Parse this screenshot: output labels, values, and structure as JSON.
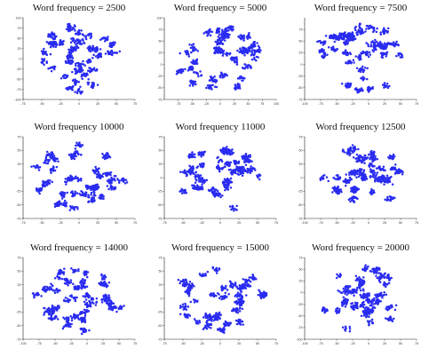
{
  "figure": {
    "marker_color": "#2a2cf0"
  },
  "chart_data": [
    {
      "type": "scatter",
      "title": "Word frequency = 2500",
      "xlim": [
        -75,
        75
      ],
      "ylim": [
        -100,
        100
      ],
      "xticks": [
        "-75",
        "-50",
        "-25",
        "0",
        "25",
        "50",
        "75"
      ],
      "yticks": [
        "100",
        "75",
        "50",
        "25",
        "0",
        "-25",
        "-50",
        "-75",
        "-100"
      ],
      "seed": 11,
      "n": 560
    },
    {
      "type": "scatter",
      "title": "Word frequency = 5000",
      "xlim": [
        -100,
        100
      ],
      "ylim": [
        -75,
        100
      ],
      "xticks": [
        "-75",
        "-50",
        "-25",
        "0",
        "25",
        "50",
        "75",
        "100"
      ],
      "yticks": [
        "100",
        "75",
        "50",
        "25",
        "0",
        "-25",
        "-50",
        "-75"
      ],
      "seed": 23,
      "n": 560
    },
    {
      "type": "scatter",
      "title": "Word frequency = 7500",
      "xlim": [
        -100,
        75
      ],
      "ylim": [
        -75,
        100
      ],
      "xticks": [
        "-100",
        "-75",
        "-50",
        "-25",
        "0",
        "25",
        "50",
        "75"
      ],
      "yticks": [
        "75",
        "50",
        "25",
        "0",
        "-25",
        "-50",
        "-75"
      ],
      "seed": 37,
      "n": 560
    },
    {
      "type": "scatter",
      "title": "Word frequency    10000",
      "xlim": [
        -75,
        75
      ],
      "ylim": [
        -75,
        75
      ],
      "xticks": [
        "-75",
        "-50",
        "-25",
        "0",
        "25",
        "50",
        "75"
      ],
      "yticks": [
        "75",
        "50",
        "25",
        "0",
        "-25",
        "-50",
        "-75"
      ],
      "seed": 41,
      "n": 560
    },
    {
      "type": "scatter",
      "title": "Word frequency    11000",
      "xlim": [
        -75,
        75
      ],
      "ylim": [
        -75,
        75
      ],
      "xticks": [
        "-75",
        "-50",
        "-25",
        "0",
        "25",
        "50",
        "75"
      ],
      "yticks": [
        "75",
        "50",
        "25",
        "0",
        "-25",
        "-50",
        "-75"
      ],
      "seed": 53,
      "n": 560
    },
    {
      "type": "scatter",
      "title": "Word frequency    12500",
      "xlim": [
        -100,
        75
      ],
      "ylim": [
        -75,
        75
      ],
      "xticks": [
        "-100",
        "-75",
        "-50",
        "-25",
        "0",
        "25",
        "50",
        "75"
      ],
      "yticks": [
        "75",
        "50",
        "25",
        "0",
        "-25",
        "-50",
        "-75"
      ],
      "seed": 67,
      "n": 560
    },
    {
      "type": "scatter",
      "title": "Word frequency = 14000",
      "xlim": [
        -100,
        75
      ],
      "ylim": [
        -75,
        75
      ],
      "xticks": [
        "-100",
        "-75",
        "-50",
        "-25",
        "0",
        "25",
        "50",
        "75"
      ],
      "yticks": [
        "75",
        "50",
        "25",
        "0",
        "-25",
        "-50",
        "-75"
      ],
      "seed": 71,
      "n": 560
    },
    {
      "type": "scatter",
      "title": "Word frequency = 15000",
      "xlim": [
        -75,
        75
      ],
      "ylim": [
        -75,
        75
      ],
      "xticks": [
        "-75",
        "-50",
        "-25",
        "0",
        "25",
        "50",
        "75"
      ],
      "yticks": [
        "75",
        "50",
        "25",
        "0",
        "-25",
        "-50",
        "-75"
      ],
      "seed": 83,
      "n": 560
    },
    {
      "type": "scatter",
      "title": "Word frequency = 20000",
      "xlim": [
        -100,
        75
      ],
      "ylim": [
        -100,
        75
      ],
      "xticks": [
        "-100",
        "-75",
        "-50",
        "-25",
        "0",
        "25",
        "50",
        "75"
      ],
      "yticks": [
        "75",
        "50",
        "25",
        "0",
        "-25",
        "-50",
        "-75",
        "-100"
      ],
      "seed": 97,
      "n": 560
    }
  ]
}
